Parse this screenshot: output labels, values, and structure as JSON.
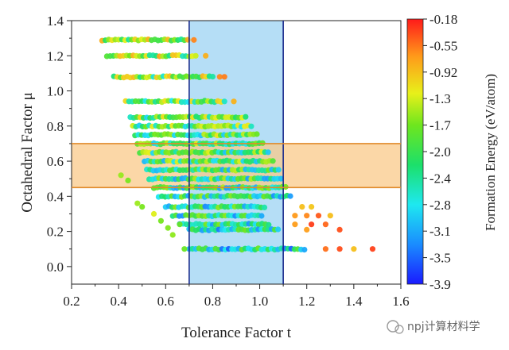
{
  "chart_data": {
    "type": "scatter",
    "title": "",
    "xlabel": "Tolerance Factor t",
    "ylabel": "Octahedral Factor μ",
    "xlim": [
      0.2,
      1.6
    ],
    "ylim": [
      -0.1,
      1.4
    ],
    "x_ticks": [
      "0.2",
      "0.4",
      "0.6",
      "0.8",
      "1.0",
      "1.2",
      "1.4",
      "1.6"
    ],
    "y_ticks": [
      "0.0",
      "0.2",
      "0.4",
      "0.6",
      "0.8",
      "1.0",
      "1.2",
      "1.4"
    ],
    "highlight_regions": [
      {
        "axis": "x",
        "range": [
          0.7,
          1.1
        ],
        "color": "#a8d8f4"
      },
      {
        "axis": "y",
        "range": [
          0.45,
          0.7
        ],
        "color": "#f9c98a"
      }
    ],
    "colorbar": {
      "label": "Formation Energy (eV/atom)",
      "ticks": [
        "-0.18",
        "-0.55",
        "-0.92",
        "-1.3",
        "-1.7",
        "-2.0",
        "-2.4",
        "-2.8",
        "-3.1",
        "-3.5",
        "-3.9"
      ],
      "range": [
        -3.9,
        -0.18
      ]
    },
    "rows": [
      {
        "y": 1.29,
        "x_start": 0.33,
        "x_end": 0.7,
        "outliers": [
          0.72
        ]
      },
      {
        "y": 1.2,
        "x_start": 0.35,
        "x_end": 0.74,
        "outliers": [
          0.77
        ]
      },
      {
        "y": 1.08,
        "x_start": 0.38,
        "x_end": 0.8,
        "outliers": [
          0.83,
          0.85
        ]
      },
      {
        "y": 0.94,
        "x_start": 0.43,
        "x_end": 0.86,
        "outliers": [
          0.89
        ]
      },
      {
        "y": 0.85,
        "x_start": 0.45,
        "x_end": 0.95,
        "outliers": []
      },
      {
        "y": 0.8,
        "x_start": 0.46,
        "x_end": 0.97,
        "outliers": []
      },
      {
        "y": 0.75,
        "x_start": 0.47,
        "x_end": 1.0,
        "outliers": []
      },
      {
        "y": 0.7,
        "x_start": 0.48,
        "x_end": 1.02,
        "outliers": []
      },
      {
        "y": 0.65,
        "x_start": 0.49,
        "x_end": 1.04,
        "outliers": []
      },
      {
        "y": 0.6,
        "x_start": 0.51,
        "x_end": 1.06,
        "outliers": []
      },
      {
        "y": 0.55,
        "x_start": 0.52,
        "x_end": 1.08,
        "outliers": []
      },
      {
        "y": 0.5,
        "x_start": 0.53,
        "x_end": 1.1,
        "outliers": []
      },
      {
        "y": 0.45,
        "x_start": 0.55,
        "x_end": 1.12,
        "outliers": []
      },
      {
        "y": 0.4,
        "x_start": 0.57,
        "x_end": 1.14,
        "outliers": []
      },
      {
        "y": 0.34,
        "x_start": 0.6,
        "x_end": 1.02,
        "outliers": [
          1.18,
          1.22
        ]
      },
      {
        "y": 0.29,
        "x_start": 0.63,
        "x_end": 1.02,
        "outliers": [
          1.15,
          1.2,
          1.25,
          1.3
        ]
      },
      {
        "y": 0.24,
        "x_start": 0.66,
        "x_end": 1.05,
        "outliers": [
          1.15,
          1.22,
          1.28
        ]
      },
      {
        "y": 0.21,
        "x_start": 0.7,
        "x_end": 1.08,
        "outliers": [
          1.2,
          1.34
        ]
      },
      {
        "y": 0.1,
        "x_start": 0.7,
        "x_end": 1.2,
        "outliers": [
          1.28,
          1.34,
          1.4,
          1.48
        ]
      }
    ],
    "scattered_points": [
      {
        "x": 0.41,
        "y": 0.52
      },
      {
        "x": 0.44,
        "y": 0.49
      },
      {
        "x": 0.48,
        "y": 0.36
      },
      {
        "x": 0.5,
        "y": 0.34
      },
      {
        "x": 0.55,
        "y": 0.3
      },
      {
        "x": 0.58,
        "y": 0.26
      },
      {
        "x": 0.61,
        "y": 0.22
      },
      {
        "x": 0.63,
        "y": 0.18
      },
      {
        "x": 0.66,
        "y": 0.24
      },
      {
        "x": 0.68,
        "y": 0.1
      }
    ]
  },
  "watermark": "npj计算材料学"
}
